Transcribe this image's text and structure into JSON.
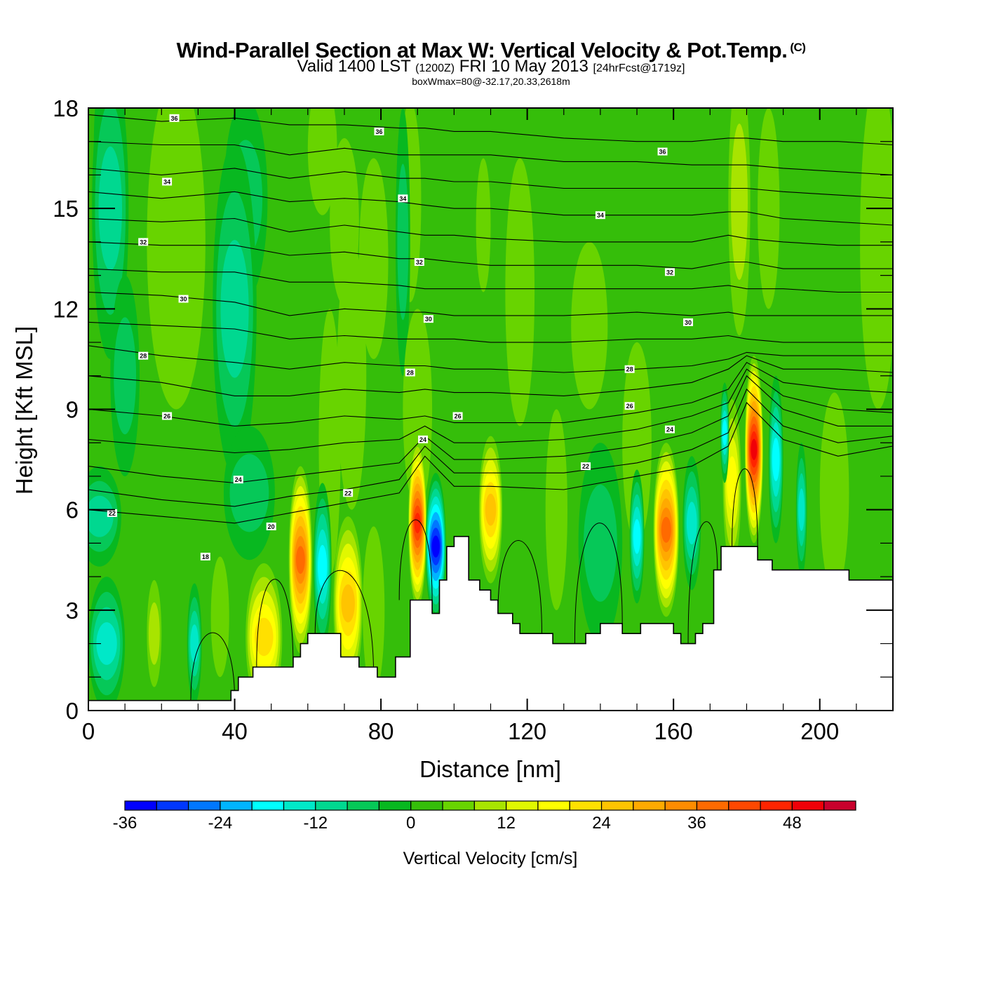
{
  "header": {
    "title": "Wind-Parallel Section at Max W: Vertical Velocity & Pot.Temp.",
    "copyright_mark": "(C)",
    "valid_prefix": "Valid 1400 LST",
    "valid_z": "(1200Z)",
    "valid_date": "FRI 10 May 2013",
    "forecast": "[24hrFcst@1719z]",
    "box_info": "boxWmax=80@-32.17,20.33,2618m"
  },
  "chart_data": {
    "type": "heatmap",
    "title": "Wind-Parallel Section at Max W: Vertical Velocity & Pot.Temp.",
    "xlabel": "Distance [nm]",
    "ylabel": "Height [Kft MSL]",
    "xlim": [
      0,
      220
    ],
    "ylim": [
      0,
      18
    ],
    "x_major_ticks": [
      0,
      40,
      80,
      120,
      160,
      200
    ],
    "x_tick_labels": [
      "0",
      "40",
      "80",
      "120",
      "160",
      "200"
    ],
    "x_minor_step": 10,
    "y_major_ticks": [
      0,
      3,
      6,
      9,
      12,
      15,
      18
    ],
    "y_tick_labels": [
      "0",
      "3",
      "6",
      "9",
      "12",
      "15",
      "18"
    ],
    "y_minor_step": 1,
    "background_value": 2,
    "colorbar": {
      "title": "Vertical Velocity [cm/s]",
      "levels": [
        -36,
        -32,
        -28,
        -24,
        -20,
        -16,
        -12,
        -8,
        -4,
        0,
        4,
        8,
        12,
        16,
        20,
        24,
        28,
        32,
        36,
        40,
        44,
        48,
        52,
        56
      ],
      "tick_values": [
        -36,
        -24,
        -12,
        0,
        12,
        24,
        36,
        48
      ],
      "tick_labels": [
        "-36",
        "-24",
        "-12",
        "0",
        "12",
        "24",
        "36",
        "48"
      ],
      "colors": [
        "#0000ff",
        "#0037ff",
        "#0077ff",
        "#00b4ff",
        "#00ffff",
        "#00e8c8",
        "#00d890",
        "#06c858",
        "#08b820",
        "#35be0a",
        "#68d400",
        "#a8e400",
        "#e0f800",
        "#ffff00",
        "#ffe000",
        "#ffc400",
        "#ffaa00",
        "#ff8c00",
        "#ff6a00",
        "#ff4800",
        "#ff2400",
        "#f00008",
        "#c8002c"
      ]
    },
    "vertical_velocity_features": [
      {
        "x": 4.5,
        "y": 17.0,
        "rx": 3,
        "ry": 2.2,
        "value": -14
      },
      {
        "x": 6,
        "y": 15,
        "rx": 5,
        "ry": 4.5,
        "value": -8
      },
      {
        "x": 24,
        "y": 14,
        "rx": 8,
        "ry": 5,
        "value": 6
      },
      {
        "x": 43,
        "y": 15.3,
        "rx": 6,
        "ry": 3,
        "value": -6
      },
      {
        "x": 64,
        "y": 16.8,
        "rx": 4,
        "ry": 2,
        "value": 6
      },
      {
        "x": 70,
        "y": 14.6,
        "rx": 4,
        "ry": 2.5,
        "value": 6
      },
      {
        "x": 78,
        "y": 13.5,
        "rx": 4,
        "ry": 3,
        "value": 6
      },
      {
        "x": 88,
        "y": 15.2,
        "rx": 3,
        "ry": 3,
        "value": 6
      },
      {
        "x": 86,
        "y": 14,
        "rx": 2,
        "ry": 4,
        "value": -6
      },
      {
        "x": 108,
        "y": 14.5,
        "rx": 2,
        "ry": 2,
        "value": 6
      },
      {
        "x": 118,
        "y": 12.5,
        "rx": 4,
        "ry": 4,
        "value": 6
      },
      {
        "x": 137,
        "y": 11.5,
        "rx": 5,
        "ry": 2.5,
        "value": 6
      },
      {
        "x": 178,
        "y": 15.2,
        "rx": 3,
        "ry": 4,
        "value": 8
      },
      {
        "x": 186,
        "y": 15,
        "rx": 3,
        "ry": 3,
        "value": 6
      },
      {
        "x": 216,
        "y": 14,
        "rx": 5,
        "ry": 5,
        "value": 6
      },
      {
        "x": 40,
        "y": 12,
        "rx": 6,
        "ry": 5,
        "value": -8
      },
      {
        "x": 72,
        "y": 10,
        "rx": 4,
        "ry": 4,
        "value": 6
      },
      {
        "x": 10,
        "y": 10,
        "rx": 4,
        "ry": 3,
        "value": -6
      },
      {
        "x": 66,
        "y": 8,
        "rx": 3,
        "ry": 4,
        "value": 6
      },
      {
        "x": 90,
        "y": 9,
        "rx": 4,
        "ry": 3,
        "value": 6
      },
      {
        "x": 128,
        "y": 6,
        "rx": 3,
        "ry": 3,
        "value": 6
      },
      {
        "x": 150,
        "y": 8,
        "rx": 4,
        "ry": 3,
        "value": 6
      },
      {
        "x": 5,
        "y": 2.0,
        "rx": 5,
        "ry": 2,
        "value": -14
      },
      {
        "x": 3,
        "y": 5.8,
        "rx": 6,
        "ry": 1.5,
        "value": -8
      },
      {
        "x": 18,
        "y": 2.3,
        "rx": 2,
        "ry": 1.6,
        "value": 10
      },
      {
        "x": 29,
        "y": 2.0,
        "rx": 2,
        "ry": 1.8,
        "value": -14
      },
      {
        "x": 36,
        "y": 2.8,
        "rx": 2.5,
        "ry": 1.8,
        "value": 6
      },
      {
        "x": 48,
        "y": 2.2,
        "rx": 5,
        "ry": 2.2,
        "value": 20
      },
      {
        "x": 44,
        "y": 6.5,
        "rx": 7,
        "ry": 2,
        "value": -6
      },
      {
        "x": 58,
        "y": 4.5,
        "rx": 3.2,
        "ry": 2.8,
        "value": 36
      },
      {
        "x": 64,
        "y": 4.3,
        "rx": 2.5,
        "ry": 2.5,
        "value": -18
      },
      {
        "x": 71,
        "y": 3.2,
        "rx": 4,
        "ry": 2.6,
        "value": 24
      },
      {
        "x": 78,
        "y": 3.0,
        "rx": 3,
        "ry": 2.5,
        "value": 6
      },
      {
        "x": 90,
        "y": 5.6,
        "rx": 2.5,
        "ry": 2.5,
        "value": 44
      },
      {
        "x": 95,
        "y": 4.9,
        "rx": 2.8,
        "ry": 2.2,
        "value": -34
      },
      {
        "x": 110,
        "y": 6.0,
        "rx": 3.2,
        "ry": 2.2,
        "value": 24
      },
      {
        "x": 140,
        "y": 5.0,
        "rx": 6,
        "ry": 3,
        "value": -6
      },
      {
        "x": 150,
        "y": 5.2,
        "rx": 2,
        "ry": 2,
        "value": -16
      },
      {
        "x": 158,
        "y": 5.4,
        "rx": 3.5,
        "ry": 2.6,
        "value": 36
      },
      {
        "x": 165,
        "y": 5.6,
        "rx": 2.5,
        "ry": 2,
        "value": -12
      },
      {
        "x": 176,
        "y": 6.8,
        "rx": 2.5,
        "ry": 2.5,
        "value": 18
      },
      {
        "x": 174,
        "y": 8.3,
        "rx": 1.2,
        "ry": 1.5,
        "value": -18
      },
      {
        "x": 182,
        "y": 7.8,
        "rx": 2.5,
        "ry": 2.8,
        "value": 48
      },
      {
        "x": 188,
        "y": 7.5,
        "rx": 2,
        "ry": 2.5,
        "value": -18
      },
      {
        "x": 195,
        "y": 6.0,
        "rx": 1.5,
        "ry": 2,
        "value": -14
      },
      {
        "x": 204,
        "y": 6.5,
        "rx": 4,
        "ry": 3,
        "value": 6
      }
    ],
    "terrain_kft": {
      "x": [
        0,
        39,
        39,
        41,
        41,
        45,
        45,
        56,
        56,
        58,
        58,
        60,
        60,
        69,
        69,
        74,
        74,
        79,
        79,
        84,
        84,
        88,
        88,
        94,
        94,
        96,
        96,
        98,
        98,
        100,
        100,
        104,
        104,
        107,
        107,
        110,
        110,
        112,
        112,
        116,
        116,
        118,
        118,
        127,
        127,
        136,
        136,
        140,
        140,
        146,
        146,
        151,
        151,
        160,
        160,
        162,
        162,
        166,
        166,
        168,
        168,
        171,
        171,
        173,
        173,
        183,
        183,
        187,
        187,
        208,
        208,
        220
      ],
      "y": [
        0.3,
        0.3,
        0.6,
        0.6,
        1.0,
        1.0,
        1.3,
        1.3,
        1.6,
        1.6,
        2.0,
        2.0,
        2.3,
        2.3,
        1.6,
        1.6,
        1.3,
        1.3,
        1.0,
        1.0,
        1.6,
        1.6,
        3.3,
        3.3,
        2.9,
        2.9,
        3.9,
        3.9,
        4.9,
        4.9,
        5.2,
        5.2,
        3.9,
        3.9,
        3.6,
        3.6,
        3.3,
        3.3,
        2.9,
        2.9,
        2.6,
        2.6,
        2.3,
        2.3,
        2.0,
        2.0,
        2.3,
        2.3,
        2.6,
        2.6,
        2.3,
        2.3,
        2.6,
        2.6,
        2.3,
        2.3,
        2.0,
        2.0,
        2.3,
        2.3,
        2.6,
        2.6,
        4.2,
        4.2,
        4.9,
        4.9,
        4.5,
        4.5,
        4.2,
        4.2,
        3.9,
        3.9
      ]
    },
    "pot_temp_contours": {
      "x": [
        0,
        20,
        40,
        55,
        70,
        85,
        92,
        100,
        110,
        130,
        150,
        165,
        175,
        180,
        190,
        205,
        220
      ],
      "lines": [
        {
          "level": 36.5,
          "y": [
            17.8,
            17.6,
            17.7,
            17.5,
            17.5,
            17.4,
            17.4,
            17.3,
            17.3,
            17.1,
            17.0,
            17.0,
            17.1,
            17.1,
            17.0,
            17.0,
            16.9
          ]
        },
        {
          "level": 36,
          "y": [
            17.0,
            16.9,
            16.9,
            16.6,
            16.8,
            16.6,
            16.6,
            16.6,
            16.6,
            16.4,
            16.4,
            16.3,
            16.3,
            16.3,
            16.2,
            16.1,
            16.0
          ]
        },
        {
          "level": 35,
          "y": [
            16.2,
            16.0,
            16.2,
            15.9,
            16.1,
            15.9,
            15.9,
            15.8,
            15.8,
            15.6,
            15.6,
            15.6,
            15.6,
            15.6,
            15.5,
            15.4,
            15.3
          ]
        },
        {
          "level": 34,
          "y": [
            15.5,
            15.3,
            15.5,
            15.2,
            15.3,
            15.2,
            15.1,
            15.0,
            15.0,
            14.8,
            14.8,
            14.8,
            14.9,
            14.9,
            14.7,
            14.6,
            14.5
          ]
        },
        {
          "level": 33,
          "y": [
            14.7,
            14.6,
            14.7,
            14.3,
            14.5,
            14.3,
            14.2,
            14.2,
            14.1,
            14.0,
            14.0,
            14.0,
            14.2,
            14.1,
            14.0,
            13.9,
            13.9
          ]
        },
        {
          "level": 32,
          "y": [
            14.0,
            13.9,
            13.9,
            13.6,
            13.7,
            13.5,
            13.5,
            13.4,
            13.3,
            13.3,
            13.3,
            13.2,
            13.4,
            13.4,
            13.2,
            13.2,
            13.2
          ]
        },
        {
          "level": 31,
          "y": [
            13.2,
            13.1,
            13.1,
            12.8,
            12.8,
            12.7,
            12.6,
            12.6,
            12.6,
            12.6,
            12.6,
            12.6,
            12.7,
            12.6,
            12.6,
            12.5,
            12.5
          ]
        },
        {
          "level": 30,
          "y": [
            12.5,
            12.4,
            12.2,
            11.8,
            12.0,
            11.9,
            11.9,
            11.8,
            11.8,
            11.8,
            11.9,
            11.8,
            11.9,
            11.8,
            11.8,
            11.8,
            11.8
          ]
        },
        {
          "level": 29,
          "y": [
            11.6,
            11.5,
            11.4,
            11.1,
            11.2,
            11.1,
            11.1,
            11.1,
            11.0,
            11.0,
            11.1,
            11.1,
            11.2,
            11.1,
            11.0,
            11.0,
            11.0
          ]
        },
        {
          "level": 28,
          "y": [
            10.9,
            10.6,
            10.4,
            10.2,
            10.4,
            10.3,
            10.3,
            10.2,
            10.2,
            10.1,
            10.2,
            10.3,
            10.5,
            10.7,
            10.6,
            10.6,
            10.6
          ]
        },
        {
          "level": 27,
          "y": [
            10.0,
            9.8,
            9.4,
            9.4,
            9.6,
            9.5,
            9.6,
            9.5,
            9.5,
            9.4,
            9.6,
            9.8,
            10.2,
            10.6,
            10.2,
            10.2,
            10.1
          ]
        },
        {
          "level": 26,
          "y": [
            9.0,
            8.8,
            8.5,
            8.6,
            8.8,
            8.7,
            8.8,
            8.6,
            8.6,
            8.6,
            8.9,
            9.2,
            9.6,
            10.4,
            9.8,
            9.6,
            9.5
          ]
        },
        {
          "level": 25,
          "y": [
            8.1,
            7.9,
            7.7,
            7.8,
            8.0,
            8.1,
            8.5,
            8.0,
            8.0,
            8.1,
            8.4,
            8.8,
            9.2,
            10.2,
            9.4,
            9.0,
            8.9
          ]
        },
        {
          "level": 24,
          "y": [
            7.3,
            7.0,
            6.8,
            7.0,
            7.2,
            7.4,
            8.2,
            7.5,
            7.5,
            7.6,
            7.9,
            8.3,
            8.8,
            10.0,
            9.0,
            8.5,
            8.5
          ]
        },
        {
          "level": 23,
          "y": [
            6.6,
            6.3,
            6.1,
            6.4,
            6.6,
            6.9,
            7.9,
            7.1,
            7.1,
            7.1,
            7.4,
            7.8,
            8.3,
            9.6,
            8.5,
            8.0,
            8.2
          ]
        },
        {
          "level": 22,
          "y": [
            6.0,
            5.8,
            5.6,
            5.9,
            6.2,
            6.5,
            7.6,
            6.7,
            6.7,
            6.6,
            7.0,
            7.3,
            7.9,
            9.2,
            8.1,
            7.6,
            7.9
          ]
        }
      ]
    },
    "contour_labels": [
      {
        "text": "36",
        "x": 23.5,
        "y": 17.7
      },
      {
        "text": "36",
        "x": 79.5,
        "y": 17.3
      },
      {
        "text": "36",
        "x": 157,
        "y": 16.7
      },
      {
        "text": "34",
        "x": 21.5,
        "y": 15.8
      },
      {
        "text": "34",
        "x": 86,
        "y": 15.3
      },
      {
        "text": "34",
        "x": 140,
        "y": 14.8
      },
      {
        "text": "32",
        "x": 15,
        "y": 14.0
      },
      {
        "text": "32",
        "x": 90.5,
        "y": 13.4
      },
      {
        "text": "32",
        "x": 159,
        "y": 13.1
      },
      {
        "text": "30",
        "x": 26,
        "y": 12.3
      },
      {
        "text": "30",
        "x": 93,
        "y": 11.7
      },
      {
        "text": "30",
        "x": 164,
        "y": 11.6
      },
      {
        "text": "28",
        "x": 15,
        "y": 10.6
      },
      {
        "text": "28",
        "x": 88,
        "y": 10.1
      },
      {
        "text": "28",
        "x": 148,
        "y": 10.2
      },
      {
        "text": "26",
        "x": 21.5,
        "y": 8.8
      },
      {
        "text": "26",
        "x": 101,
        "y": 8.8
      },
      {
        "text": "26",
        "x": 148,
        "y": 9.1
      },
      {
        "text": "24",
        "x": 41,
        "y": 6.9
      },
      {
        "text": "24",
        "x": 91.5,
        "y": 8.1
      },
      {
        "text": "24",
        "x": 159,
        "y": 8.4
      },
      {
        "text": "22",
        "x": 6.5,
        "y": 5.9
      },
      {
        "text": "22",
        "x": 71,
        "y": 6.5
      },
      {
        "text": "22",
        "x": 136,
        "y": 7.3
      },
      {
        "text": "20",
        "x": 50,
        "y": 5.5
      },
      {
        "text": "18",
        "x": 32,
        "y": 4.6
      }
    ]
  }
}
